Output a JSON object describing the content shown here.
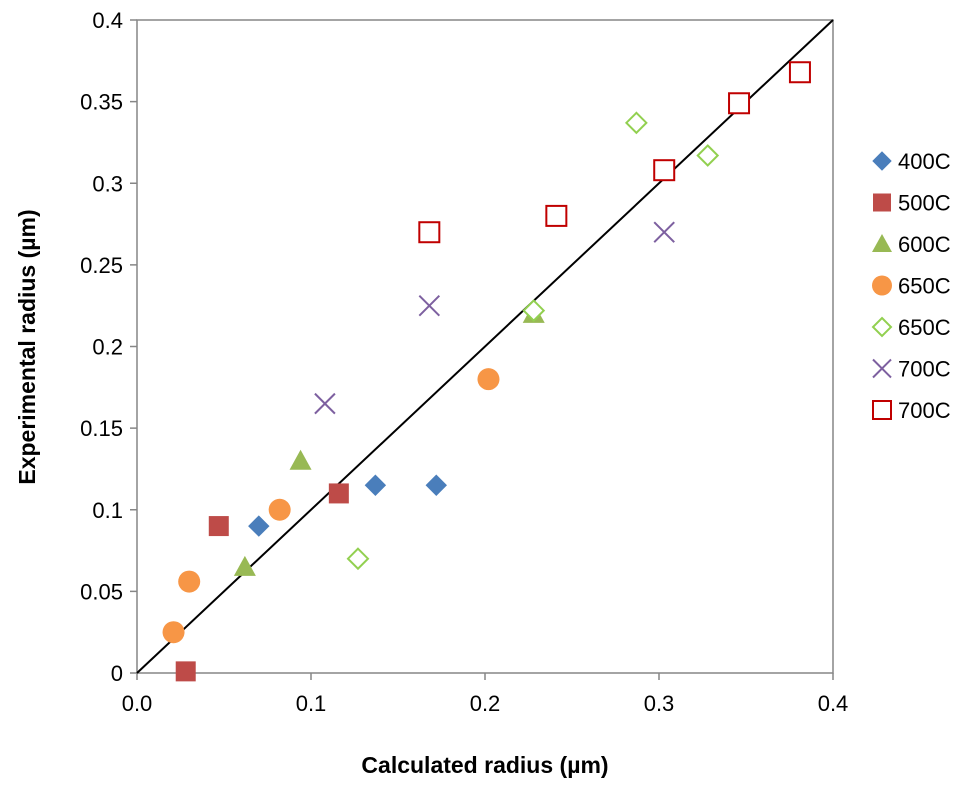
{
  "chart_data": {
    "type": "scatter",
    "title": "",
    "xlabel": "Calculated radius (µm)",
    "ylabel": "Experimental radius (µm)",
    "xlim": [
      0,
      0.4
    ],
    "ylim": [
      0,
      0.4
    ],
    "xticks": [
      "0.0",
      "0.1",
      "0.2",
      "0.3",
      "0.4"
    ],
    "yticks": [
      "0",
      "0.05",
      "0.1",
      "0.15",
      "0.2",
      "0.25",
      "0.3",
      "0.35",
      "0.4"
    ],
    "grid": false,
    "legend_position": "right",
    "reference_line": {
      "x": [
        0,
        0.4
      ],
      "y": [
        0,
        0.4
      ],
      "color": "#000000"
    },
    "series": [
      {
        "name": "400C",
        "marker": "diamond-filled",
        "color": "#4a7ebb",
        "points": [
          [
            0.07,
            0.09
          ],
          [
            0.137,
            0.115
          ],
          [
            0.172,
            0.115
          ]
        ]
      },
      {
        "name": "500C",
        "marker": "square-filled",
        "color": "#be4b48",
        "points": [
          [
            0.028,
            0.001
          ],
          [
            0.047,
            0.09
          ],
          [
            0.116,
            0.11
          ]
        ]
      },
      {
        "name": "600C",
        "marker": "triangle-filled",
        "color": "#98b954",
        "points": [
          [
            0.062,
            0.065
          ],
          [
            0.094,
            0.13
          ],
          [
            0.228,
            0.22
          ]
        ]
      },
      {
        "name": "650C",
        "marker": "circle-filled",
        "color": "#f79646",
        "points": [
          [
            0.021,
            0.025
          ],
          [
            0.03,
            0.056
          ],
          [
            0.082,
            0.1
          ],
          [
            0.202,
            0.18
          ]
        ]
      },
      {
        "name": "650C",
        "marker": "diamond-open",
        "color": "#92d050",
        "points": [
          [
            0.127,
            0.07
          ],
          [
            0.228,
            0.222
          ],
          [
            0.287,
            0.337
          ],
          [
            0.328,
            0.317
          ]
        ]
      },
      {
        "name": "700C",
        "marker": "x",
        "color": "#7d60a0",
        "points": [
          [
            0.108,
            0.165
          ],
          [
            0.168,
            0.225
          ],
          [
            0.303,
            0.27
          ]
        ]
      },
      {
        "name": "700C",
        "marker": "square-open",
        "color": "#c00000",
        "points": [
          [
            0.168,
            0.27
          ],
          [
            0.241,
            0.28
          ],
          [
            0.303,
            0.308
          ],
          [
            0.346,
            0.349
          ],
          [
            0.381,
            0.368
          ]
        ]
      }
    ]
  }
}
